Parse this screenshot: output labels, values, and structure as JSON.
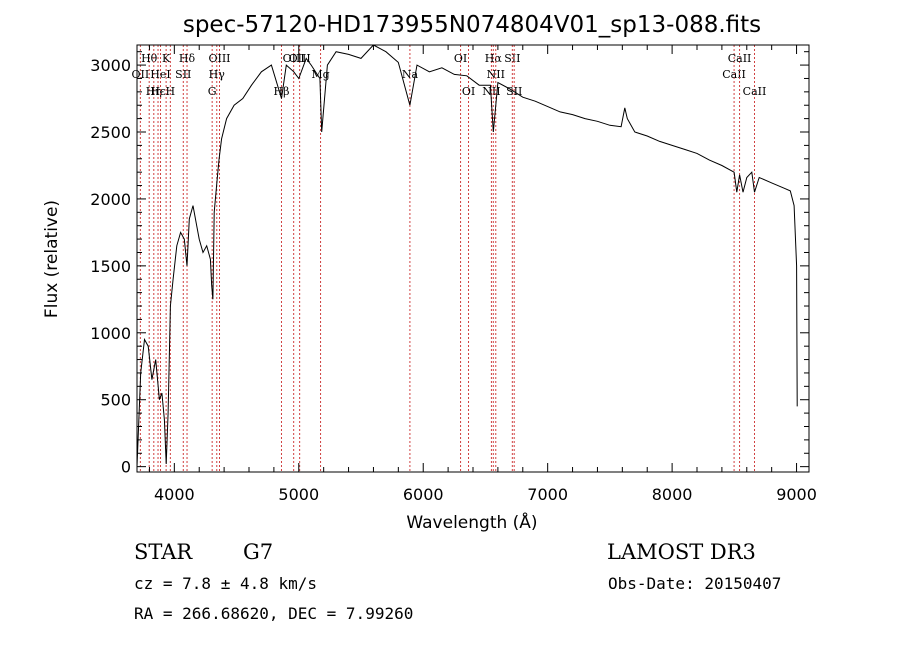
{
  "chart_data": {
    "type": "line",
    "title": "spec-57120-HD173955N074804V01_sp13-088.fits",
    "xlabel": "Wavelength (Å)",
    "ylabel": "Flux (relative)",
    "xlim": [
      3700,
      9100
    ],
    "ylim": [
      -40,
      3150
    ],
    "xticks": [
      4000,
      5000,
      6000,
      7000,
      8000,
      9000
    ],
    "yticks": [
      0,
      500,
      1000,
      1500,
      2000,
      2500,
      3000
    ],
    "series": [
      {
        "name": "flux",
        "x": [
          3700,
          3730,
          3760,
          3790,
          3820,
          3850,
          3880,
          3900,
          3920,
          3935,
          3950,
          3968,
          3990,
          4020,
          4050,
          4080,
          4102,
          4120,
          4150,
          4180,
          4200,
          4230,
          4260,
          4290,
          4300,
          4310,
          4320,
          4340,
          4360,
          4380,
          4420,
          4480,
          4550,
          4620,
          4700,
          4780,
          4861,
          4900,
          4960,
          5000,
          5060,
          5100,
          5170,
          5184,
          5230,
          5300,
          5400,
          5500,
          5600,
          5700,
          5800,
          5893,
          5950,
          6050,
          6150,
          6250,
          6350,
          6450,
          6540,
          6563,
          6600,
          6700,
          6800,
          6900,
          7000,
          7100,
          7200,
          7300,
          7400,
          7500,
          7590,
          7620,
          7640,
          7700,
          7800,
          7900,
          8000,
          8100,
          8200,
          8300,
          8400,
          8498,
          8520,
          8542,
          8570,
          8600,
          8640,
          8662,
          8700,
          8800,
          8900,
          8950,
          8980,
          9000,
          9005
        ],
        "y": [
          0,
          700,
          950,
          900,
          650,
          800,
          500,
          550,
          350,
          20,
          400,
          1200,
          1400,
          1650,
          1750,
          1700,
          1500,
          1850,
          1950,
          1800,
          1700,
          1600,
          1650,
          1550,
          1350,
          1250,
          1900,
          2100,
          2300,
          2450,
          2600,
          2700,
          2750,
          2850,
          2950,
          3000,
          2750,
          3000,
          2950,
          2900,
          3050,
          3000,
          2900,
          2500,
          3000,
          3100,
          3080,
          3050,
          3150,
          3100,
          3020,
          2700,
          3000,
          2950,
          2980,
          2930,
          2920,
          2850,
          2850,
          2500,
          2870,
          2820,
          2760,
          2730,
          2690,
          2650,
          2630,
          2600,
          2580,
          2550,
          2540,
          2680,
          2600,
          2500,
          2470,
          2430,
          2400,
          2370,
          2340,
          2290,
          2250,
          2200,
          2050,
          2180,
          2050,
          2160,
          2200,
          2050,
          2160,
          2120,
          2080,
          2060,
          1950,
          1500,
          450
        ]
      }
    ],
    "lines": [
      {
        "w": 3727,
        "label": "OII",
        "row": 2
      },
      {
        "w": 3798,
        "label": "Hθ",
        "row": 1
      },
      {
        "w": 3835,
        "label": "Hη",
        "row": 3
      },
      {
        "w": 3869,
        "label": "Hε",
        "row": 3
      },
      {
        "w": 3889,
        "label": "HeI",
        "row": 2
      },
      {
        "w": 3934,
        "label": "K",
        "row": 1
      },
      {
        "w": 3968,
        "label": "H",
        "row": 3
      },
      {
        "w": 4072,
        "label": "SII",
        "row": 2
      },
      {
        "w": 4102,
        "label": "Hδ",
        "row": 1
      },
      {
        "w": 4304,
        "label": "G",
        "row": 3
      },
      {
        "w": 4341,
        "label": "Hγ",
        "row": 2
      },
      {
        "w": 4363,
        "label": "OIII",
        "row": 1
      },
      {
        "w": 4861,
        "label": "Hβ",
        "row": 3
      },
      {
        "w": 4959,
        "label": "OIII",
        "row": 1
      },
      {
        "w": 5007,
        "label": "OIII",
        "row": 1
      },
      {
        "w": 5175,
        "label": "Mg",
        "row": 2
      },
      {
        "w": 5893,
        "label": "Na",
        "row": 2
      },
      {
        "w": 6300,
        "label": "OI",
        "row": 1
      },
      {
        "w": 6364,
        "label": "OI",
        "row": 3
      },
      {
        "w": 6548,
        "label": "NII",
        "row": 3
      },
      {
        "w": 6563,
        "label": "Hα",
        "row": 1
      },
      {
        "w": 6583,
        "label": "NII",
        "row": 2
      },
      {
        "w": 6716,
        "label": "SII",
        "row": 1
      },
      {
        "w": 6731,
        "label": "SII",
        "row": 3
      },
      {
        "w": 8498,
        "label": "CaII",
        "row": 2
      },
      {
        "w": 8542,
        "label": "CaII",
        "row": 1
      },
      {
        "w": 8662,
        "label": "CaII",
        "row": 3
      }
    ]
  },
  "info": {
    "object_class": "STAR",
    "subclass": "G7",
    "survey": "LAMOST DR3",
    "cz": "cz = 7.8 ± 4.8 km/s",
    "obs_date": "Obs-Date: 20150407",
    "coords": "RA = 266.68620, DEC =    7.99260"
  }
}
